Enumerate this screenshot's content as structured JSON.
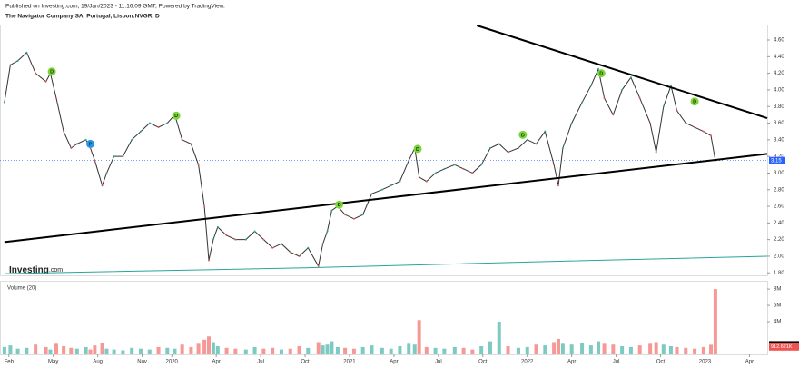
{
  "header": {
    "published": "Published on Investing.com, 19/Jan/2023 - 11:16:09 GMT, Powered by TradingView.",
    "instrument": "The Navigator Company SA, Portugal, Lisbon:NVGR, D"
  },
  "logo": {
    "brand": "Investing",
    "suffix": ".com"
  },
  "chart_data": {
    "type": "line",
    "color": "#333333",
    "x": [
      -0.3,
      0.1,
      0.6,
      1.2,
      1.8,
      2.5,
      2.8,
      3.2,
      3.7,
      4.2,
      4.6,
      5.2,
      5.5,
      5.8,
      6.3,
      6.6,
      7.1,
      7.7,
      8.3,
      8.9,
      9.5,
      10.1,
      10.7,
      11.2,
      11.7,
      12.3,
      12.8,
      13.2,
      13.5,
      13.8,
      14.1,
      14.7,
      15.3,
      16.0,
      16.6,
      17.2,
      17.8,
      18.4,
      19.0,
      19.6,
      20.2,
      20.9,
      21.2,
      21.5,
      21.8,
      22.2,
      22.7,
      23.3,
      23.9,
      24.5,
      25.2,
      25.8,
      26.4,
      27.0,
      27.4,
      27.7,
      28.2,
      28.8,
      29.4,
      30.1,
      30.7,
      31.3,
      31.9,
      32.5,
      33.1,
      33.7,
      34.4,
      35.0,
      35.6,
      36.2,
      36.8,
      37.1,
      37.4,
      38.0,
      38.7,
      39.3,
      39.8,
      40.2,
      40.8,
      41.4,
      42.0,
      42.6,
      43.3,
      43.7,
      44.2,
      44.7,
      45.1,
      45.7,
      46.3,
      46.9,
      47.4,
      47.7
    ],
    "values": [
      3.85,
      4.3,
      4.35,
      4.45,
      4.2,
      4.1,
      4.2,
      3.9,
      3.5,
      3.3,
      3.35,
      3.4,
      3.3,
      3.15,
      2.85,
      3.0,
      3.2,
      3.2,
      3.4,
      3.5,
      3.6,
      3.55,
      3.6,
      3.7,
      3.4,
      3.35,
      3.1,
      2.6,
      1.95,
      2.2,
      2.35,
      2.25,
      2.2,
      2.2,
      2.3,
      2.2,
      2.1,
      2.15,
      2.05,
      2.0,
      2.1,
      1.88,
      2.15,
      2.3,
      2.55,
      2.6,
      2.5,
      2.45,
      2.5,
      2.75,
      2.8,
      2.85,
      2.9,
      3.15,
      3.3,
      2.95,
      2.9,
      3.0,
      3.05,
      3.1,
      3.05,
      3.0,
      3.1,
      3.3,
      3.35,
      3.25,
      3.3,
      3.4,
      3.35,
      3.5,
      3.1,
      2.85,
      3.3,
      3.6,
      3.85,
      4.05,
      4.25,
      3.9,
      3.7,
      4.0,
      4.15,
      3.9,
      3.6,
      3.25,
      3.8,
      4.05,
      3.75,
      3.6,
      3.55,
      3.5,
      3.45,
      3.15
    ],
    "xlim": [
      -0.6,
      51.2
    ],
    "xticks": [
      {
        "value": 0,
        "label": "Feb"
      },
      {
        "value": 3,
        "label": "May"
      },
      {
        "value": 6,
        "label": "Aug"
      },
      {
        "value": 9,
        "label": "Nov"
      },
      {
        "value": 11,
        "label": "2020"
      },
      {
        "value": 14,
        "label": "Apr"
      },
      {
        "value": 17,
        "label": "Jul"
      },
      {
        "value": 20,
        "label": "Oct"
      },
      {
        "value": 23,
        "label": "2021"
      },
      {
        "value": 26,
        "label": "Apr"
      },
      {
        "value": 29,
        "label": "Jul"
      },
      {
        "value": 32,
        "label": "Oct"
      },
      {
        "value": 35,
        "label": "2022"
      },
      {
        "value": 38,
        "label": "Apr"
      },
      {
        "value": 41,
        "label": "Jul"
      },
      {
        "value": 44,
        "label": "Oct"
      },
      {
        "value": 47,
        "label": "2023"
      },
      {
        "value": 50,
        "label": "Apr"
      }
    ],
    "ylim": [
      1.77,
      4.775
    ],
    "yticks": [
      {
        "value": 1.8,
        "label": "1.80"
      },
      {
        "value": 2.0,
        "label": "2.00"
      },
      {
        "value": 2.2,
        "label": "2.20"
      },
      {
        "value": 2.4,
        "label": "2.40"
      },
      {
        "value": 2.6,
        "label": "2.60"
      },
      {
        "value": 2.8,
        "label": "2.80"
      },
      {
        "value": 3.0,
        "label": "3.00"
      },
      {
        "value": 3.2,
        "label": "3.20"
      },
      {
        "value": 3.4,
        "label": "3.40"
      },
      {
        "value": 3.6,
        "label": "3.60"
      },
      {
        "value": 3.8,
        "label": "3.80"
      },
      {
        "value": 4.0,
        "label": "4.00"
      },
      {
        "value": 4.2,
        "label": "4.20"
      },
      {
        "value": 4.4,
        "label": "4.40"
      },
      {
        "value": 4.6,
        "label": "4.60"
      }
    ],
    "last_price": 3.15,
    "last_color": "#2962ff",
    "trendlines": [
      {
        "x": [
          31.6,
          51.2
        ],
        "y": [
          4.775,
          3.66
        ],
        "color": "#000000"
      },
      {
        "x": [
          -0.3,
          51.2
        ],
        "y": [
          2.17,
          3.23
        ],
        "color": "#000000"
      }
    ],
    "moving_average": {
      "x": [
        -0.3,
        20.0,
        35.0,
        51.2
      ],
      "y": [
        1.79,
        1.86,
        1.93,
        2.0
      ],
      "color": "#26a69a"
    },
    "events": [
      {
        "x": 2.9,
        "y": 4.22,
        "label": "D",
        "color": "#7cd33a"
      },
      {
        "x": 5.5,
        "y": 3.35,
        "label": "P",
        "color": "#2196f3"
      },
      {
        "x": 11.3,
        "y": 3.69,
        "label": "D",
        "color": "#7cd33a"
      },
      {
        "x": 22.3,
        "y": 2.62,
        "label": "D",
        "color": "#7cd33a"
      },
      {
        "x": 27.6,
        "y": 3.29,
        "label": "D",
        "color": "#7cd33a"
      },
      {
        "x": 34.7,
        "y": 3.46,
        "label": "D",
        "color": "#7cd33a"
      },
      {
        "x": 40.0,
        "y": 4.2,
        "label": "D",
        "color": "#7cd33a"
      },
      {
        "x": 46.3,
        "y": 3.86,
        "label": "D",
        "color": "#7cd33a"
      }
    ],
    "volume": {
      "label": "Volume (20)",
      "up_color": "#26a69a",
      "down_color": "#ef5350",
      "values": [
        900000,
        1100000,
        700000,
        800000,
        1200000,
        900000,
        600000,
        1300000,
        1000000,
        800000,
        700000,
        900000,
        600000,
        1100000,
        1400000,
        700000,
        600000,
        500000,
        800000,
        700000,
        600000,
        900000,
        800000,
        700000,
        1200000,
        900000,
        1300000,
        1800000,
        2200000,
        1500000,
        1000000,
        800000,
        700000,
        600000,
        900000,
        700000,
        800000,
        600000,
        700000,
        1000000,
        800000,
        1500000,
        1100000,
        1200000,
        1600000,
        900000,
        800000,
        700000,
        900000,
        1100000,
        800000,
        700000,
        1000000,
        1300000,
        1200000,
        4200000,
        900000,
        800000,
        700000,
        900000,
        800000,
        600000,
        1000000,
        1600000,
        4000000,
        1000000,
        800000,
        900000,
        1200000,
        1100000,
        1500000,
        1900000,
        1300000,
        1200000,
        1400000,
        1100000,
        1600000,
        1300000,
        1200000,
        1000000,
        900000,
        1100000,
        1300000,
        1500000,
        1200000,
        1000000,
        900000,
        800000,
        700000,
        900000,
        1178000,
        8000000
      ],
      "ylim": [
        0,
        8900000
      ],
      "yticks": [
        {
          "value": 4000000,
          "label": "4M"
        },
        {
          "value": 6000000,
          "label": "6M"
        },
        {
          "value": 8000000,
          "label": "8M"
        }
      ],
      "tags": [
        {
          "value": 1178000,
          "label": "1.178M",
          "color": "#000000"
        },
        {
          "value": 912621,
          "label": "912.621K",
          "color": "#ef5350"
        }
      ]
    }
  }
}
